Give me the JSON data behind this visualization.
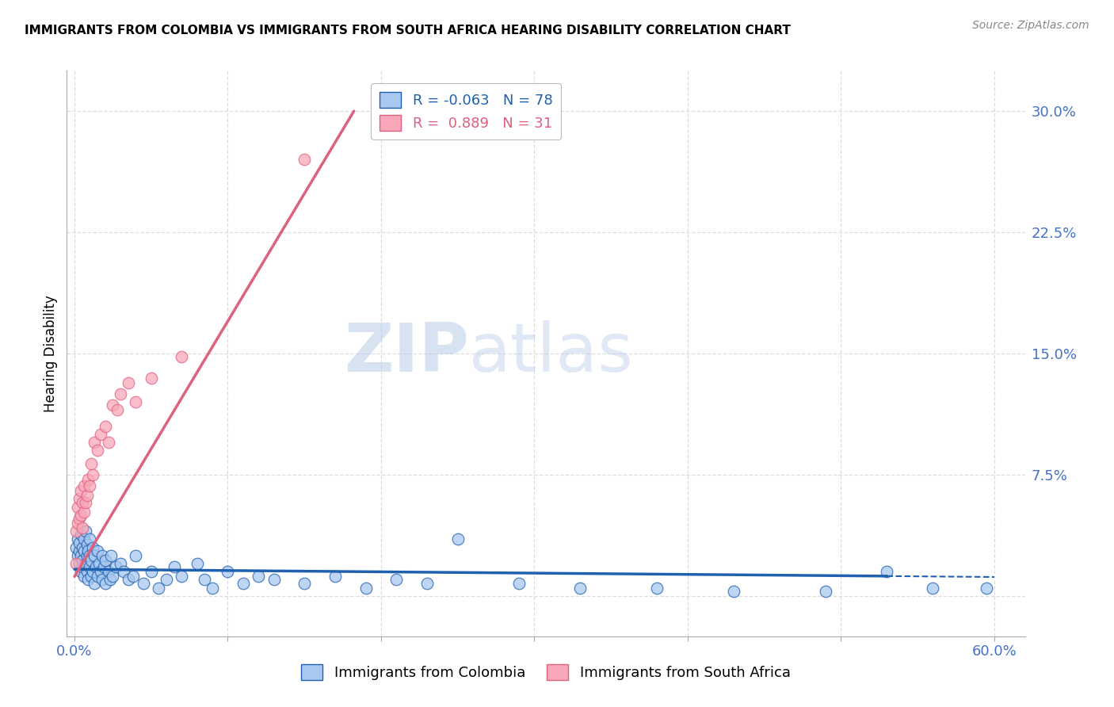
{
  "title": "IMMIGRANTS FROM COLOMBIA VS IMMIGRANTS FROM SOUTH AFRICA HEARING DISABILITY CORRELATION CHART",
  "source": "Source: ZipAtlas.com",
  "xlabel_colombia": "Immigrants from Colombia",
  "xlabel_south_africa": "Immigrants from South Africa",
  "ylabel": "Hearing Disability",
  "xlim": [
    -0.005,
    0.62
  ],
  "ylim": [
    -0.025,
    0.325
  ],
  "yticks": [
    0.0,
    0.075,
    0.15,
    0.225,
    0.3
  ],
  "xticks": [
    0.0,
    0.1,
    0.2,
    0.3,
    0.4,
    0.5,
    0.6
  ],
  "colombia_color": "#a8c8f0",
  "south_africa_color": "#f8a8b8",
  "colombia_line_color": "#2060b0",
  "south_africa_line_color": "#e06080",
  "legend_R_colombia": "-0.063",
  "legend_N_colombia": "78",
  "legend_R_south_africa": "0.889",
  "legend_N_south_africa": "31",
  "watermark_zip": "ZIP",
  "watermark_atlas": "atlas",
  "colombia_scatter_x": [
    0.001,
    0.002,
    0.002,
    0.003,
    0.003,
    0.003,
    0.004,
    0.004,
    0.004,
    0.005,
    0.005,
    0.005,
    0.006,
    0.006,
    0.006,
    0.007,
    0.007,
    0.008,
    0.008,
    0.008,
    0.009,
    0.009,
    0.01,
    0.01,
    0.01,
    0.011,
    0.011,
    0.012,
    0.012,
    0.013,
    0.013,
    0.014,
    0.015,
    0.015,
    0.016,
    0.017,
    0.018,
    0.018,
    0.019,
    0.02,
    0.02,
    0.022,
    0.023,
    0.024,
    0.025,
    0.027,
    0.03,
    0.032,
    0.035,
    0.038,
    0.04,
    0.045,
    0.05,
    0.055,
    0.06,
    0.065,
    0.07,
    0.08,
    0.085,
    0.09,
    0.1,
    0.11,
    0.12,
    0.13,
    0.15,
    0.17,
    0.19,
    0.21,
    0.23,
    0.25,
    0.29,
    0.33,
    0.38,
    0.43,
    0.49,
    0.53,
    0.56,
    0.595
  ],
  "colombia_scatter_y": [
    0.03,
    0.025,
    0.035,
    0.02,
    0.028,
    0.033,
    0.015,
    0.025,
    0.038,
    0.018,
    0.03,
    0.022,
    0.012,
    0.028,
    0.035,
    0.02,
    0.04,
    0.015,
    0.025,
    0.032,
    0.01,
    0.028,
    0.018,
    0.025,
    0.035,
    0.012,
    0.022,
    0.015,
    0.03,
    0.008,
    0.025,
    0.018,
    0.012,
    0.028,
    0.02,
    0.015,
    0.01,
    0.025,
    0.018,
    0.008,
    0.022,
    0.015,
    0.01,
    0.025,
    0.012,
    0.018,
    0.02,
    0.015,
    0.01,
    0.012,
    0.025,
    0.008,
    0.015,
    0.005,
    0.01,
    0.018,
    0.012,
    0.02,
    0.01,
    0.005,
    0.015,
    0.008,
    0.012,
    0.01,
    0.008,
    0.012,
    0.005,
    0.01,
    0.008,
    0.035,
    0.008,
    0.005,
    0.005,
    0.003,
    0.003,
    0.015,
    0.005,
    0.005
  ],
  "south_africa_scatter_x": [
    0.001,
    0.001,
    0.002,
    0.002,
    0.003,
    0.003,
    0.004,
    0.004,
    0.005,
    0.005,
    0.006,
    0.006,
    0.007,
    0.008,
    0.009,
    0.01,
    0.011,
    0.012,
    0.013,
    0.015,
    0.017,
    0.02,
    0.022,
    0.025,
    0.028,
    0.03,
    0.035,
    0.04,
    0.05,
    0.07,
    0.15
  ],
  "south_africa_scatter_y": [
    0.02,
    0.04,
    0.045,
    0.055,
    0.048,
    0.06,
    0.05,
    0.065,
    0.042,
    0.058,
    0.052,
    0.068,
    0.058,
    0.062,
    0.072,
    0.068,
    0.082,
    0.075,
    0.095,
    0.09,
    0.1,
    0.105,
    0.095,
    0.118,
    0.115,
    0.125,
    0.132,
    0.12,
    0.135,
    0.148,
    0.27
  ],
  "background_color": "#ffffff",
  "grid_color": "#dddddd",
  "tick_color": "#4472c4",
  "colombia_line_R": -0.063,
  "colombia_line_intercept": 0.0165,
  "south_africa_line_slope": 1.58,
  "south_africa_line_intercept": 0.012
}
